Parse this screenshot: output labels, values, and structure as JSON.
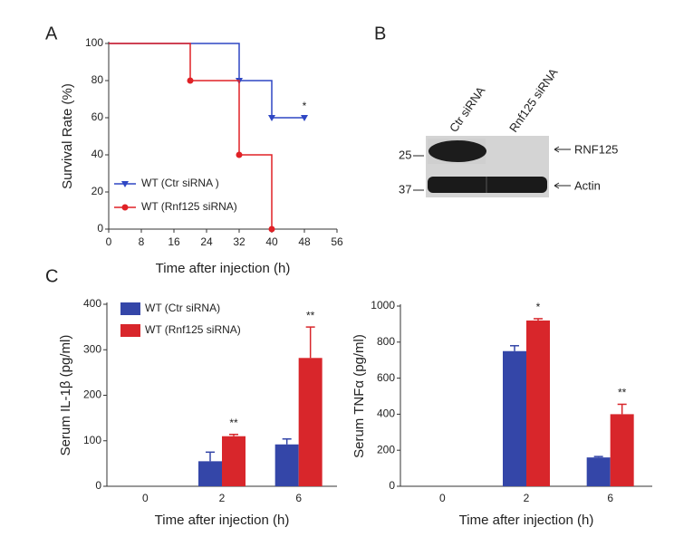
{
  "panel_labels": [
    "A",
    "B",
    "C"
  ],
  "blot": {
    "lanes": [
      "Ctr siRNA",
      "Rnf125 siRNA"
    ],
    "markers": [
      "25",
      "37"
    ],
    "bands": [
      "RNF125",
      "Actin"
    ]
  },
  "chart_data": [
    {
      "type": "line",
      "step": true,
      "xlabel": "Time after injection (h)",
      "ylabel": "Survival Rate (%)",
      "xlim": [
        0,
        56
      ],
      "xticks": [
        0,
        8,
        16,
        24,
        32,
        40,
        48,
        56
      ],
      "ylim": [
        0,
        100
      ],
      "yticks": [
        0,
        20,
        40,
        60,
        80,
        100
      ],
      "legend": "lower left",
      "series": [
        {
          "name": "WT (Ctr siRNA )",
          "color": "#2f47c4",
          "marker": "triangle",
          "x": [
            0,
            32,
            40,
            48
          ],
          "values": [
            100,
            80,
            60,
            60
          ],
          "annotations": [
            null,
            null,
            null,
            "*"
          ]
        },
        {
          "name": "WT (Rnf125 siRNA)",
          "color": "#e02126",
          "marker": "circle",
          "x": [
            0,
            20,
            32,
            40
          ],
          "values": [
            100,
            80,
            40,
            0
          ],
          "annotations": [
            null,
            null,
            null,
            null
          ]
        }
      ]
    },
    {
      "type": "bar",
      "xlabel": "Time after injection (h)",
      "ylabel": "Serum IL-1β (pg/ml)",
      "categories": [
        "0",
        "2",
        "6"
      ],
      "ylim": [
        0,
        400
      ],
      "yticks": [
        0,
        100,
        200,
        300,
        400
      ],
      "legend": "upper left",
      "series": [
        {
          "name": "WT (Ctr siRNA)",
          "color": "#3446a8",
          "values": [
            0,
            55,
            92
          ],
          "errors": [
            null,
            20,
            12
          ],
          "annotations": [
            null,
            null,
            null
          ]
        },
        {
          "name": "WT (Rnf125 siRNA)",
          "color": "#d8262b",
          "values": [
            0,
            110,
            282
          ],
          "errors": [
            null,
            4,
            68
          ],
          "annotations": [
            null,
            "**",
            "**"
          ]
        }
      ]
    },
    {
      "type": "bar",
      "xlabel": "Time after injection (h)",
      "ylabel": "Serum TNFα  (pg/ml)",
      "categories": [
        "0",
        "2",
        "6"
      ],
      "ylim": [
        0,
        1000
      ],
      "yticks": [
        0,
        200,
        400,
        600,
        800,
        1000
      ],
      "legend": false,
      "series": [
        {
          "color": "#3446a8",
          "values": [
            0,
            750,
            160
          ],
          "errors": [
            null,
            30,
            5
          ],
          "annotations": [
            null,
            null,
            null
          ]
        },
        {
          "color": "#d8262b",
          "values": [
            0,
            920,
            400
          ],
          "errors": [
            null,
            10,
            55
          ],
          "annotations": [
            null,
            "*",
            "**"
          ]
        }
      ]
    }
  ]
}
